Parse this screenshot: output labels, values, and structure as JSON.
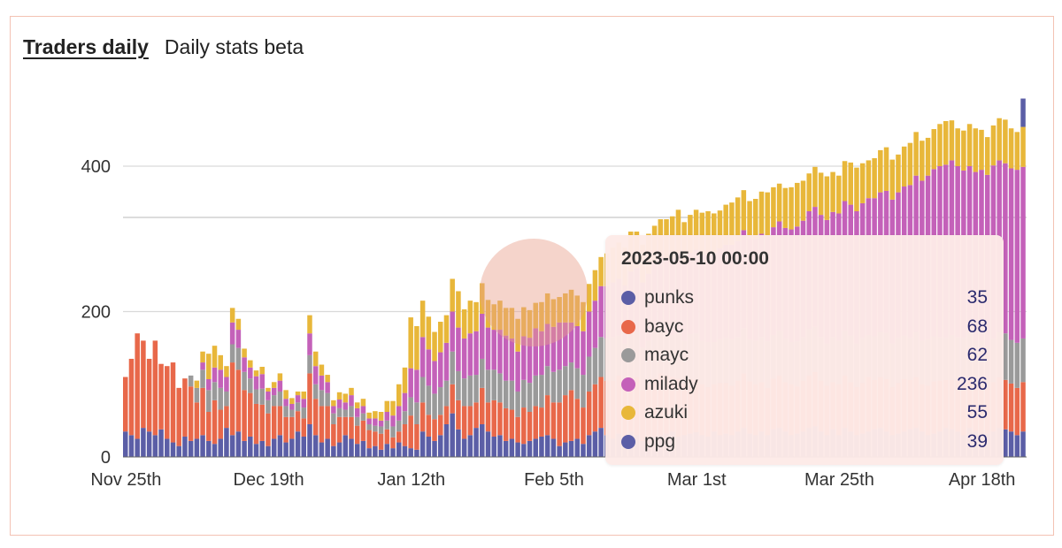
{
  "header": {
    "tab_active": "Traders daily",
    "tab_other": "Daily stats beta"
  },
  "colors": {
    "punks": "#5b5ea6",
    "bayc": "#e8684a",
    "mayc": "#9a9a9a",
    "milady": "#c461b9",
    "azuki": "#e8b73a",
    "ppg": "#5b5ea6",
    "frame": "#f3c2b3",
    "tooltip_bg": "#fdeae7"
  },
  "tooltip": {
    "title": "2023-05-10 00:00",
    "rows": [
      {
        "name": "punks",
        "value": "35",
        "color": "#5b5ea6"
      },
      {
        "name": "bayc",
        "value": "68",
        "color": "#e8684a"
      },
      {
        "name": "mayc",
        "value": "62",
        "color": "#9a9a9a"
      },
      {
        "name": "milady",
        "value": "236",
        "color": "#c461b9"
      },
      {
        "name": "azuki",
        "value": "55",
        "color": "#e8b73a"
      },
      {
        "name": "ppg",
        "value": "39",
        "color": "#5b5ea6"
      }
    ]
  },
  "chart_data": {
    "type": "bar",
    "stacked": true,
    "title": "",
    "xlabel": "",
    "ylabel": "",
    "ylim": [
      0,
      500
    ],
    "yticks": [
      0,
      200,
      400
    ],
    "grid": "horizontal",
    "x_tick_labels": [
      "Nov 25th",
      "Dec 19th",
      "Jan 12th",
      "Feb 5th",
      "Mar 1st",
      "Mar 25th",
      "Apr 18th"
    ],
    "x_tick_indices": [
      0,
      24,
      48,
      72,
      96,
      120,
      144
    ],
    "series_order": [
      "punks",
      "bayc",
      "mayc",
      "milady",
      "azuki",
      "ppg"
    ],
    "series": [
      {
        "name": "punks",
        "values": [
          35,
          30,
          25,
          40,
          35,
          30,
          38,
          25,
          20,
          15,
          28,
          22,
          25,
          30,
          22,
          18,
          25,
          40,
          30,
          35,
          22,
          28,
          18,
          22,
          15,
          25,
          30,
          20,
          25,
          35,
          28,
          45,
          30,
          20,
          25,
          15,
          20,
          30,
          25,
          18,
          22,
          12,
          15,
          10,
          18,
          12,
          20,
          15,
          12,
          10,
          35,
          28,
          22,
          30,
          45,
          60,
          38,
          25,
          30,
          40,
          45,
          35,
          28,
          30,
          22,
          25,
          20,
          18,
          22,
          25,
          28,
          30,
          25,
          15,
          20,
          22,
          25,
          18,
          30,
          35,
          40,
          30,
          25,
          32,
          28,
          35,
          30,
          22,
          25,
          28,
          30,
          32,
          35,
          28,
          30,
          32,
          34,
          30,
          28,
          35,
          30,
          32,
          30,
          35,
          40,
          32,
          30,
          35,
          30,
          38,
          40,
          35,
          30,
          32,
          35,
          40,
          42,
          35,
          30,
          38,
          30,
          40,
          35,
          30,
          32,
          35,
          38,
          40,
          35,
          30,
          32,
          35,
          38,
          40,
          35,
          30,
          32,
          35,
          40,
          38,
          35,
          30,
          40,
          35,
          30,
          32,
          35,
          40,
          38,
          35,
          30,
          35
        ]
      },
      {
        "name": "bayc",
        "values": [
          75,
          105,
          145,
          120,
          100,
          130,
          90,
          100,
          110,
          80,
          80,
          75,
          50,
          65,
          40,
          60,
          40,
          30,
          100,
          85,
          70,
          60,
          55,
          50,
          45,
          45,
          40,
          35,
          30,
          28,
          25,
          70,
          50,
          50,
          45,
          30,
          35,
          25,
          30,
          25,
          28,
          25,
          20,
          22,
          20,
          15,
          15,
          30,
          45,
          35,
          40,
          30,
          30,
          28,
          25,
          40,
          40,
          45,
          40,
          35,
          50,
          40,
          50,
          45,
          45,
          40,
          35,
          50,
          40,
          45,
          40,
          55,
          50,
          60,
          65,
          70,
          55,
          50,
          60,
          65,
          70,
          75,
          80,
          80,
          70,
          75,
          80,
          70,
          75,
          80,
          85,
          80,
          75,
          80,
          70,
          75,
          72,
          70,
          68,
          65,
          72,
          70,
          68,
          70,
          75,
          72,
          70,
          68,
          65,
          70,
          72,
          68,
          70,
          65,
          70,
          72,
          75,
          70,
          68,
          65,
          70,
          72,
          68,
          66,
          70,
          75,
          68,
          70,
          72,
          66,
          70,
          72,
          68,
          70,
          65,
          68,
          72,
          70,
          66,
          68,
          70,
          72,
          68,
          65,
          68,
          62,
          68,
          70,
          68,
          66,
          65,
          68
        ]
      },
      {
        "name": "mayc",
        "values": [
          0,
          0,
          0,
          0,
          0,
          0,
          0,
          0,
          0,
          0,
          0,
          15,
          20,
          25,
          30,
          25,
          30,
          20,
          25,
          30,
          25,
          20,
          20,
          22,
          18,
          15,
          20,
          15,
          10,
          12,
          15,
          25,
          20,
          22,
          18,
          15,
          12,
          10,
          15,
          12,
          10,
          8,
          8,
          10,
          12,
          15,
          15,
          18,
          25,
          30,
          35,
          40,
          35,
          38,
          35,
          45,
          40,
          38,
          42,
          38,
          40,
          45,
          42,
          40,
          38,
          40,
          35,
          38,
          40,
          42,
          45,
          40,
          42,
          45,
          40,
          38,
          42,
          45,
          48,
          50,
          55,
          58,
          60,
          55,
          58,
          60,
          62,
          58,
          60,
          65,
          62,
          60,
          58,
          62,
          60,
          62,
          64,
          60,
          62,
          58,
          60,
          62,
          64,
          60,
          62,
          58,
          60,
          62,
          64,
          60,
          62,
          60,
          58,
          62,
          60,
          64,
          62,
          60,
          58,
          62,
          60,
          62,
          64,
          60,
          62,
          58,
          60,
          62,
          64,
          60,
          62,
          60,
          58,
          62,
          60,
          64,
          62,
          60,
          58,
          62,
          60,
          62,
          64,
          60,
          62,
          58,
          60,
          62,
          64,
          60,
          62,
          60
        ]
      },
      {
        "name": "milady",
        "values": [
          0,
          0,
          0,
          0,
          0,
          0,
          0,
          0,
          0,
          0,
          0,
          0,
          0,
          10,
          15,
          20,
          25,
          20,
          30,
          25,
          20,
          15,
          18,
          20,
          12,
          10,
          15,
          10,
          8,
          10,
          12,
          30,
          25,
          20,
          15,
          10,
          12,
          10,
          15,
          12,
          10,
          8,
          10,
          8,
          12,
          15,
          20,
          25,
          40,
          45,
          55,
          50,
          45,
          48,
          52,
          55,
          60,
          55,
          58,
          60,
          62,
          58,
          55,
          60,
          62,
          58,
          55,
          60,
          62,
          65,
          60,
          58,
          62,
          65,
          60,
          55,
          58,
          60,
          62,
          65,
          70,
          72,
          75,
          78,
          80,
          85,
          88,
          90,
          92,
          95,
          98,
          100,
          105,
          110,
          108,
          112,
          115,
          118,
          120,
          122,
          125,
          128,
          130,
          132,
          135,
          138,
          140,
          142,
          145,
          148,
          150,
          152,
          155,
          158,
          160,
          162,
          165,
          168,
          170,
          172,
          175,
          178,
          180,
          182,
          185,
          188,
          190,
          192,
          195,
          198,
          200,
          205,
          210,
          215,
          220,
          225,
          230,
          235,
          238,
          240,
          235,
          230,
          228,
          232,
          235,
          236,
          238,
          236,
          234,
          236,
          238,
          236
        ]
      },
      {
        "name": "azuki",
        "values": [
          0,
          0,
          0,
          0,
          0,
          0,
          0,
          0,
          0,
          0,
          0,
          0,
          10,
          15,
          35,
          30,
          20,
          15,
          20,
          15,
          12,
          10,
          8,
          10,
          5,
          8,
          10,
          12,
          8,
          5,
          10,
          25,
          20,
          15,
          10,
          8,
          10,
          12,
          10,
          8,
          10,
          8,
          10,
          12,
          15,
          20,
          30,
          35,
          70,
          60,
          50,
          45,
          40,
          42,
          38,
          45,
          50,
          40,
          45,
          40,
          42,
          38,
          35,
          40,
          38,
          42,
          45,
          40,
          38,
          35,
          40,
          42,
          38,
          35,
          40,
          45,
          42,
          40,
          38,
          42,
          40,
          45,
          48,
          50,
          52,
          55,
          50,
          52,
          55,
          50,
          52,
          55,
          58,
          60,
          55,
          52,
          55,
          58,
          60,
          55,
          52,
          55,
          58,
          60,
          55,
          52,
          55,
          58,
          60,
          55,
          52,
          55,
          58,
          60,
          55,
          52,
          55,
          58,
          60,
          55,
          52,
          55,
          58,
          60,
          55,
          52,
          55,
          58,
          60,
          55,
          52,
          55,
          58,
          60,
          55,
          52,
          55,
          58,
          60,
          55,
          52,
          55,
          58,
          60,
          55,
          52,
          55,
          58,
          60,
          55,
          52,
          55
        ]
      },
      {
        "name": "ppg",
        "values": [
          0,
          0,
          0,
          0,
          0,
          0,
          0,
          0,
          0,
          0,
          0,
          0,
          0,
          0,
          0,
          0,
          0,
          0,
          0,
          0,
          0,
          0,
          0,
          0,
          0,
          0,
          0,
          0,
          0,
          0,
          0,
          0,
          0,
          0,
          0,
          0,
          0,
          0,
          0,
          0,
          0,
          0,
          0,
          0,
          0,
          0,
          0,
          0,
          0,
          0,
          0,
          0,
          0,
          0,
          0,
          0,
          0,
          0,
          0,
          0,
          0,
          0,
          0,
          0,
          0,
          0,
          0,
          0,
          0,
          0,
          0,
          0,
          0,
          0,
          0,
          0,
          0,
          0,
          0,
          0,
          0,
          0,
          0,
          0,
          0,
          0,
          0,
          0,
          0,
          0,
          0,
          0,
          0,
          0,
          0,
          0,
          0,
          0,
          0,
          0,
          0,
          0,
          0,
          0,
          0,
          0,
          0,
          0,
          0,
          0,
          0,
          0,
          0,
          0,
          0,
          0,
          0,
          0,
          0,
          0,
          0,
          0,
          0,
          0,
          0,
          0,
          0,
          0,
          0,
          0,
          0,
          0,
          0,
          0,
          0,
          0,
          0,
          0,
          0,
          0,
          0,
          0,
          0,
          0,
          0,
          0,
          0,
          0,
          0,
          0,
          0,
          39
        ]
      }
    ]
  }
}
